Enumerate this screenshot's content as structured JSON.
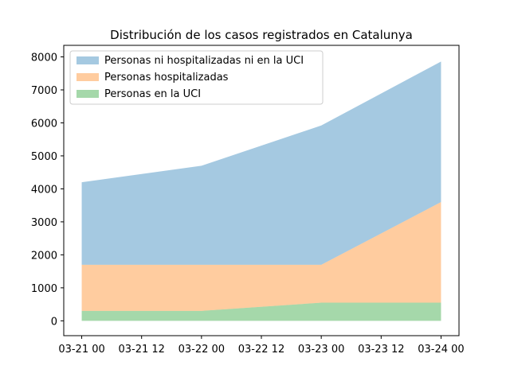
{
  "chart_data": {
    "type": "area",
    "stacked": true,
    "title": "Distribución de los casos registrados en Catalunya",
    "xlabel": "",
    "ylabel": "",
    "x": [
      "2020-03-21 00:00",
      "2020-03-22 00:00",
      "2020-03-23 00:00",
      "2020-03-24 00:00"
    ],
    "x_tick_labels": [
      "03-21 00",
      "03-21 12",
      "03-22 00",
      "03-22 12",
      "03-23 00",
      "03-23 12",
      "03-24 00"
    ],
    "y_ticks": [
      0,
      1000,
      2000,
      3000,
      4000,
      5000,
      6000,
      7000,
      8000
    ],
    "ylim": [
      -450,
      8350
    ],
    "grid": false,
    "legend_position": "upper-left",
    "series": [
      {
        "name": "Personas en la UCI",
        "values": [
          300,
          300,
          550,
          550
        ],
        "color": "#1f9e2a"
      },
      {
        "name": "Personas hospitalizadas",
        "values": [
          1400,
          1400,
          1150,
          3050
        ],
        "color": "#ff7f0e"
      },
      {
        "name": "Personas ni hospitalizadas ni en la UCI",
        "values": [
          2500,
          3000,
          4220,
          4260
        ],
        "color": "#1f77b4"
      }
    ],
    "legend_order": [
      "Personas ni hospitalizadas ni en la UCI",
      "Personas hospitalizadas",
      "Personas en la UCI"
    ],
    "fill_opacity": 0.4
  }
}
